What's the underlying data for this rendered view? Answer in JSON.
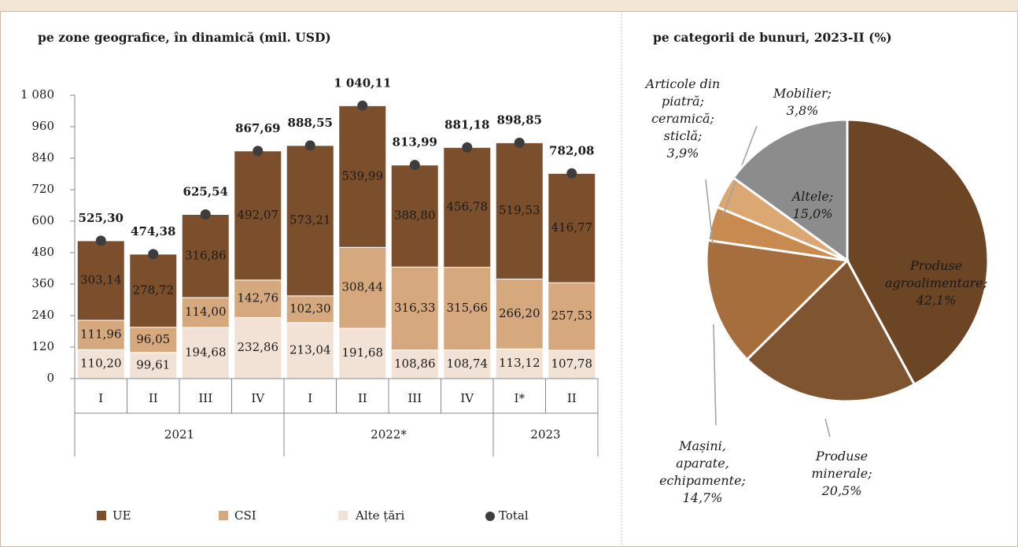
{
  "chart_data": [
    {
      "type": "stacked-bar",
      "title": "pe zone geografice, în dinamică (mil. USD)",
      "categories": [
        "I",
        "II",
        "III",
        "IV",
        "I",
        "II",
        "III",
        "IV",
        "I*",
        "II"
      ],
      "groups": [
        "2021",
        "2022*",
        "2023"
      ],
      "ylim": [
        0,
        1080
      ],
      "yticks": [
        0,
        120,
        240,
        360,
        480,
        600,
        720,
        840,
        960,
        {
          "value": 1080,
          "label": "1 080"
        }
      ],
      "series": [
        {
          "name": "Alte țări",
          "color": "#f2e2d6",
          "values": [
            110.2,
            99.61,
            194.68,
            232.86,
            213.04,
            191.68,
            108.86,
            108.74,
            113.12,
            107.78
          ],
          "value_labels": [
            "110,20",
            "99,61",
            "194,68",
            "232,86",
            "213,04",
            "191,68",
            "108,86",
            "108,74",
            "113,12",
            "107,78"
          ]
        },
        {
          "name": "CSI",
          "color": "#d5a87e",
          "values": [
            111.96,
            96.05,
            114.0,
            142.76,
            102.3,
            308.44,
            316.33,
            315.66,
            266.2,
            257.53
          ],
          "value_labels": [
            "111,96",
            "96,05",
            "114,00",
            "142,76",
            "102,30",
            "308,44",
            "316,33",
            "315,66",
            "266,20",
            "257,53"
          ]
        },
        {
          "name": "UE",
          "color": "#7b4f2b",
          "values": [
            303.14,
            278.72,
            316.86,
            492.07,
            573.21,
            539.99,
            388.8,
            456.78,
            519.53,
            416.77
          ],
          "value_labels": [
            "303,14",
            "278,72",
            "316,86",
            "492,07",
            "573,21",
            "539,99",
            "388,80",
            "456,78",
            "519,53",
            "416,77"
          ]
        },
        {
          "name": "Total",
          "color": "#3d3d3d",
          "values": [
            525.3,
            474.38,
            625.54,
            867.69,
            888.55,
            1040.11,
            813.99,
            881.18,
            898.85,
            782.08
          ],
          "value_labels": [
            "525,30",
            "474,38",
            "625,54",
            "867,69",
            "888,55",
            "1 040,11",
            "813,99",
            "881,18",
            "898,85",
            "782,08"
          ]
        }
      ]
    },
    {
      "type": "pie",
      "title": "pe categorii de bunuri, 2023-II (%)",
      "categories": [
        [
          "Produse",
          "agroalimentare;"
        ],
        [
          "Produse",
          "minerale;"
        ],
        [
          "Mașini,",
          "aparate,",
          "echipamente;"
        ],
        [
          "Articole din",
          "piatră;",
          "ceramică;",
          "sticlă;"
        ],
        [
          "Mobilier;"
        ],
        [
          "Altele;"
        ]
      ],
      "values": [
        42.1,
        20.5,
        14.7,
        3.9,
        3.8,
        15.0
      ],
      "value_labels": [
        "42,1%",
        "20,5%",
        "14,7%",
        "3,9%",
        "3,8%",
        "15,0%"
      ],
      "colors": [
        "#6c4524",
        "#7e5431",
        "#a66e3d",
        "#c98a4f",
        "#dba873",
        "#8c8c8c"
      ]
    }
  ]
}
